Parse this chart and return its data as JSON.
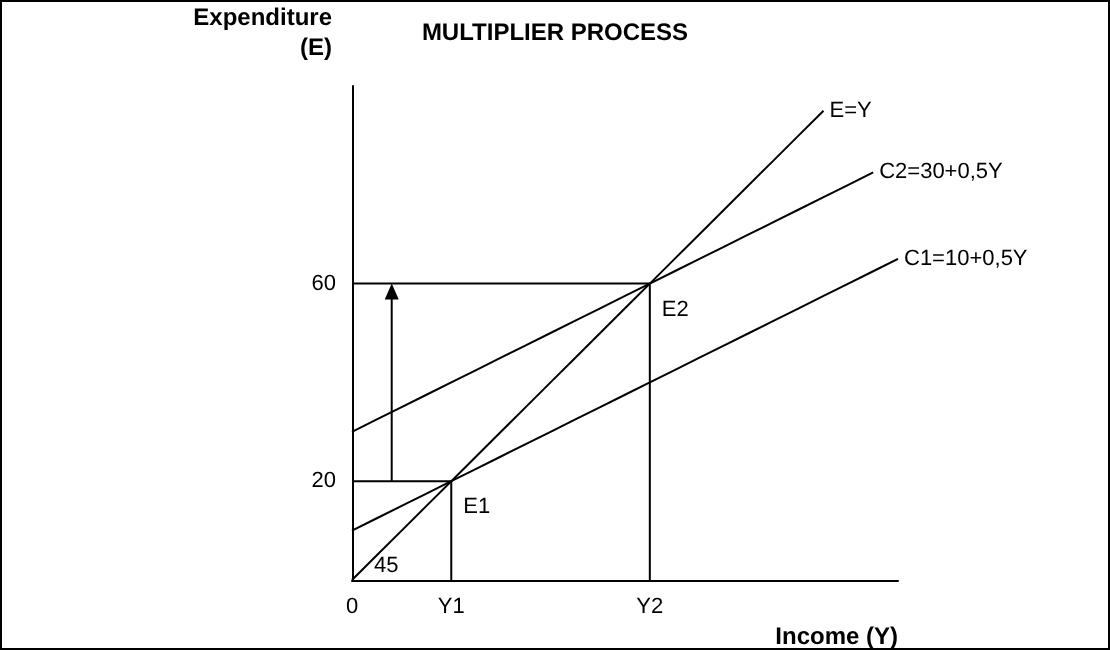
{
  "chart_data": {
    "type": "line",
    "title": "MULTIPLIER PROCESS",
    "xlabel": "Income (Y)",
    "ylabel": "Expenditure\n(E)",
    "categories": [
      "0",
      null,
      null,
      null,
      "Y1",
      null,
      null,
      null,
      null,
      null,
      null,
      null,
      "Y2",
      null,
      null,
      null,
      null,
      null,
      null,
      null,
      null,
      null,
      null
    ],
    "ylim": [
      0,
      100
    ],
    "yticks": [
      20,
      60
    ],
    "series": [
      {
        "name": "E=Y",
        "color": "#000000",
        "values": [
          0,
          5,
          10,
          15,
          20,
          25,
          30,
          35,
          40,
          45,
          50,
          55,
          60,
          65,
          70,
          75,
          80,
          85,
          90,
          95,
          null,
          null,
          null
        ]
      },
      {
        "name": "C2=30+0,5Y",
        "color": "#000000",
        "values": [
          30,
          32.5,
          35,
          37.5,
          40,
          42.5,
          45,
          47.5,
          50,
          52.5,
          55,
          57.5,
          60,
          62.5,
          65,
          67.5,
          70,
          72.5,
          75,
          77.5,
          80,
          82.5,
          null
        ]
      },
      {
        "name": "C1=10+0,5Y",
        "color": "#000000",
        "values": [
          10,
          12.5,
          15,
          17.5,
          20,
          22.5,
          25,
          27.5,
          30,
          32.5,
          35,
          37.5,
          40,
          42.5,
          45,
          47.5,
          50,
          52.5,
          55,
          57.5,
          60,
          62.5,
          65
        ]
      },
      {
        "color": "#000000",
        "x": [
          "0",
          "Y1",
          "Y1"
        ],
        "values": [
          20,
          20,
          0
        ]
      },
      {
        "color": "#000000",
        "x": [
          "0",
          "Y2",
          "Y2"
        ],
        "values": [
          60,
          60,
          0
        ]
      }
    ],
    "annotations": [
      {
        "text": "E1",
        "x": "Y1",
        "y": 20
      },
      {
        "text": "E2",
        "x": "Y2",
        "y": 60
      },
      {
        "text": "45",
        "x": "0",
        "y": 0
      }
    ],
    "grid": false,
    "legend": false,
    "marker": "none",
    "line_style": "solid"
  }
}
